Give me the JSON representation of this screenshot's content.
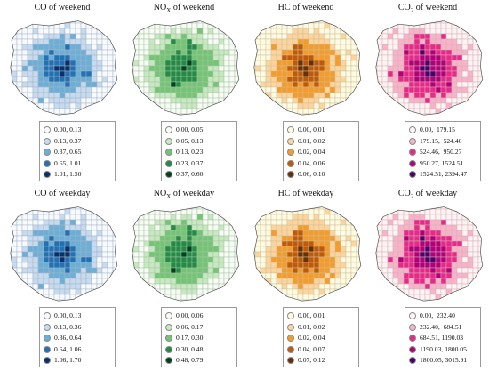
{
  "panels": [
    {
      "id": "co-weekend",
      "title_main": "CO of weekend",
      "title_sub": "",
      "title_rest": "",
      "colors": [
        "#f7fbff",
        "#c6dbef",
        "#6baed6",
        "#2171b5",
        "#08306b"
      ],
      "grid_stroke": "#a7b4c4",
      "legend": [
        "0.00, 0.13",
        "0.13, 0.37",
        "0.37, 0.65",
        "0.65, 1.01",
        "1.01, 1.50"
      ]
    },
    {
      "id": "nox-weekend",
      "title_main": "NO",
      "title_sub": "X",
      "title_rest": " of weekend",
      "colors": [
        "#f7fcf5",
        "#c7e9c0",
        "#74c476",
        "#238b45",
        "#00441b"
      ],
      "grid_stroke": "#a8c2a6",
      "legend": [
        "0.00, 0.05",
        "0.05, 0.13",
        "0.13, 0.23",
        "0.23, 0.37",
        "0.37, 0.60"
      ]
    },
    {
      "id": "hc-weekend",
      "title_main": "HC of weekend",
      "title_sub": "",
      "title_rest": "",
      "colors": [
        "#fffbe2",
        "#fdd49e",
        "#f39b2d",
        "#c05a08",
        "#6b2f06"
      ],
      "grid_stroke": "#cdbf98",
      "legend": [
        "0.00, 0.01",
        "0.01, 0.02",
        "0.02, 0.04",
        "0.04, 0.06",
        "0.06, 0.10"
      ]
    },
    {
      "id": "co2-weekend",
      "title_main": "CO",
      "title_sub": "2",
      "title_rest": " of weekend",
      "colors": [
        "#fff4f3",
        "#f7b3c8",
        "#e7298a",
        "#b1007a",
        "#49006a"
      ],
      "grid_stroke": "#d3b0b8",
      "legend": [
        "0.00,  179.15",
        "179.15,  524.46",
        "524.46,  950.27",
        "950.27, 1524.51",
        "1524.51, 2394.47"
      ]
    },
    {
      "id": "co-weekday",
      "title_main": "CO of weekday",
      "title_sub": "",
      "title_rest": "",
      "colors": [
        "#f7fbff",
        "#c6dbef",
        "#6baed6",
        "#2171b5",
        "#08306b"
      ],
      "grid_stroke": "#a7b4c4",
      "legend": [
        "0.00, 0.13",
        "0.13, 0.36",
        "0.36, 0.64",
        "0.64, 1.06",
        "1.06, 1.70"
      ]
    },
    {
      "id": "nox-weekday",
      "title_main": "NO",
      "title_sub": "X",
      "title_rest": " of weekday",
      "colors": [
        "#f7fcf5",
        "#c7e9c0",
        "#74c476",
        "#238b45",
        "#00441b"
      ],
      "grid_stroke": "#a8c2a6",
      "legend": [
        "0.00, 0.06",
        "0.06, 0.17",
        "0.17, 0.30",
        "0.30, 0.48",
        "0.48, 0.79"
      ]
    },
    {
      "id": "hc-weekday",
      "title_main": "HC of weekday",
      "title_sub": "",
      "title_rest": "",
      "colors": [
        "#fffbe2",
        "#fdd49e",
        "#f39b2d",
        "#c05a08",
        "#6b2f06"
      ],
      "grid_stroke": "#cdbf98",
      "legend": [
        "0.00, 0.01",
        "0.01, 0.02",
        "0.02, 0.04",
        "0.04, 0.07",
        "0.07, 0.12"
      ]
    },
    {
      "id": "co2-weekday",
      "title_main": "CO",
      "title_sub": "2",
      "title_rest": " of weekday",
      "colors": [
        "#fff4f3",
        "#f7b3c8",
        "#e7298a",
        "#b1007a",
        "#49006a"
      ],
      "grid_stroke": "#d3b0b8",
      "legend": [
        "0.00,  232.40",
        "232.40,  684.51",
        "684.51, 1190.03",
        "1190.03, 1800.05",
        "1800.05, 3015.91"
      ]
    }
  ]
}
